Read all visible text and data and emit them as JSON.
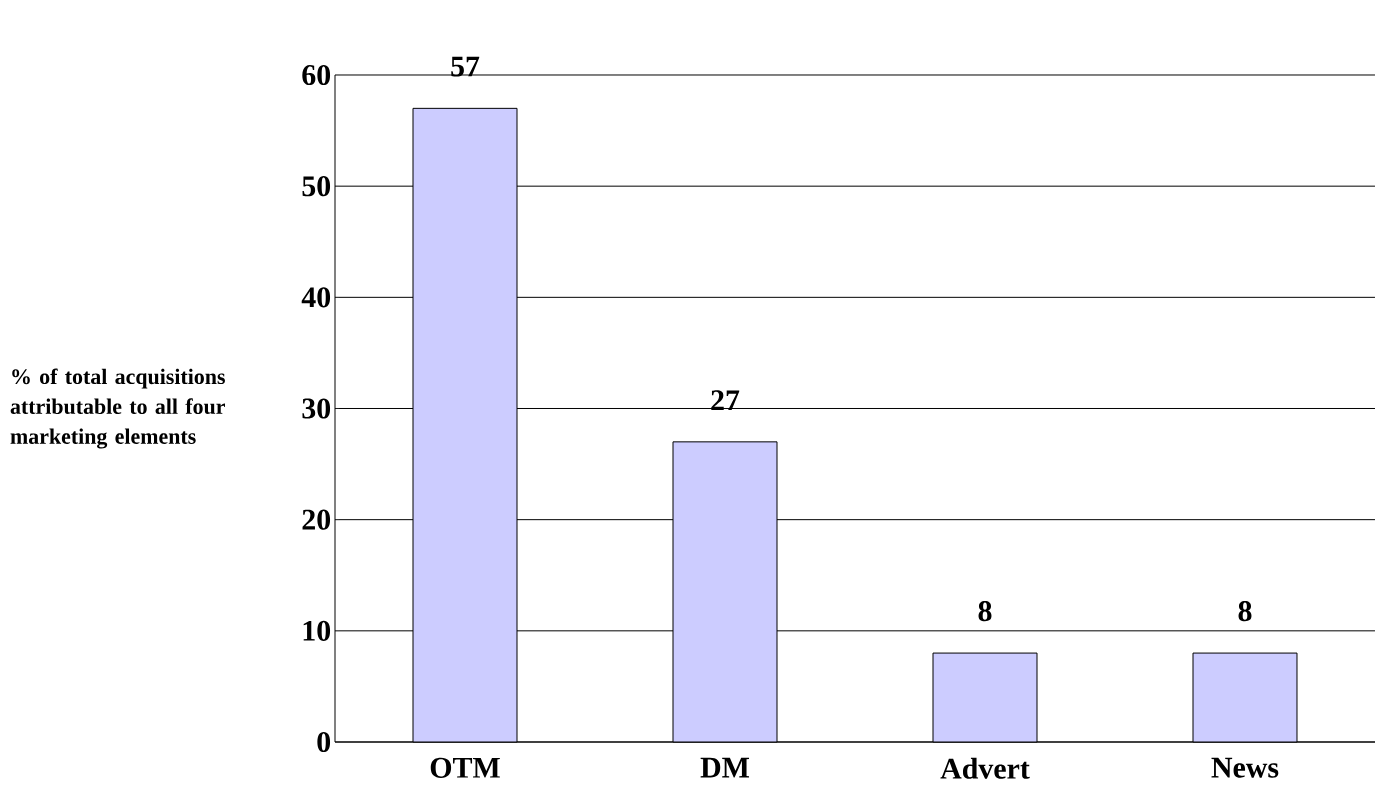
{
  "chart_data": {
    "type": "bar",
    "ylabel": "% of total acquisitions attributable to all four marketing elements",
    "categories": [
      "OTM",
      "DM",
      "Advert",
      "News"
    ],
    "values": [
      57,
      27,
      8,
      8
    ],
    "color": "#ccccff",
    "ylim": [
      0,
      60
    ],
    "yticks": [
      0,
      10,
      20,
      30,
      40,
      50,
      60
    ],
    "grid": "y",
    "data_labels": true
  }
}
